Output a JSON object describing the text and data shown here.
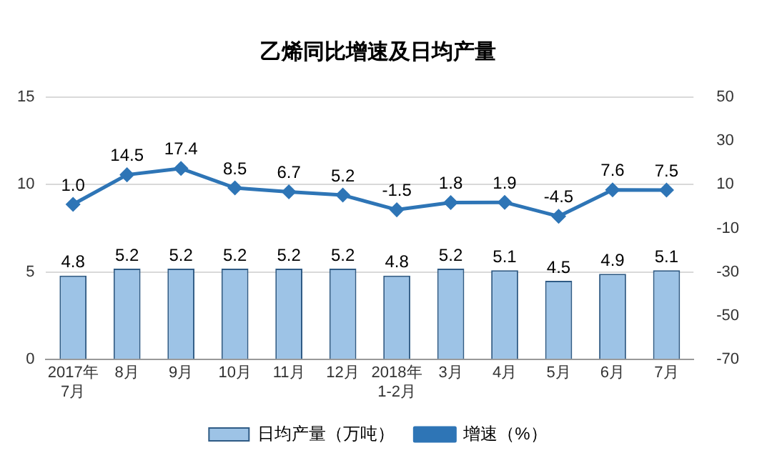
{
  "chart_data": {
    "type": "bar",
    "title": "乙烯同比增速及日均产量",
    "categories": [
      "2017年\n7月",
      "8月",
      "9月",
      "10月",
      "11月",
      "12月",
      "2018年\n1-2月",
      "3月",
      "4月",
      "5月",
      "6月",
      "7月"
    ],
    "series": [
      {
        "name": "日均产量（万吨）",
        "color": "#9dc3e6",
        "values": [
          4.8,
          5.2,
          5.2,
          5.2,
          5.2,
          5.2,
          4.8,
          5.2,
          5.1,
          4.5,
          4.9,
          5.1
        ],
        "value_labels": [
          "4.8",
          "5.2",
          "5.2",
          "5.2",
          "5.2",
          "5.2",
          "4.8",
          "5.2",
          "5.1",
          "4.5",
          "4.9",
          "5.1"
        ]
      },
      {
        "name": "增速（%）",
        "type": "line",
        "axis": "y2",
        "color": "#2e75b6",
        "values": [
          1.0,
          14.5,
          17.4,
          8.5,
          6.7,
          5.2,
          -1.5,
          1.8,
          1.9,
          -4.5,
          7.6,
          7.5
        ],
        "value_labels": [
          "1.0",
          "14.5",
          "17.4",
          "8.5",
          "6.7",
          "5.2",
          "-1.5",
          "1.8",
          "1.9",
          "-4.5",
          "7.6",
          "7.5"
        ]
      }
    ],
    "ylim": [
      0,
      15
    ],
    "yticks": [
      0,
      5,
      10,
      15
    ],
    "y2lim": [
      -70,
      50
    ],
    "y2ticks": [
      -70,
      -50,
      -30,
      -10,
      10,
      30,
      50
    ],
    "grid": "y",
    "legend": "bottom",
    "marker": "diamond",
    "line_style": "solid"
  }
}
